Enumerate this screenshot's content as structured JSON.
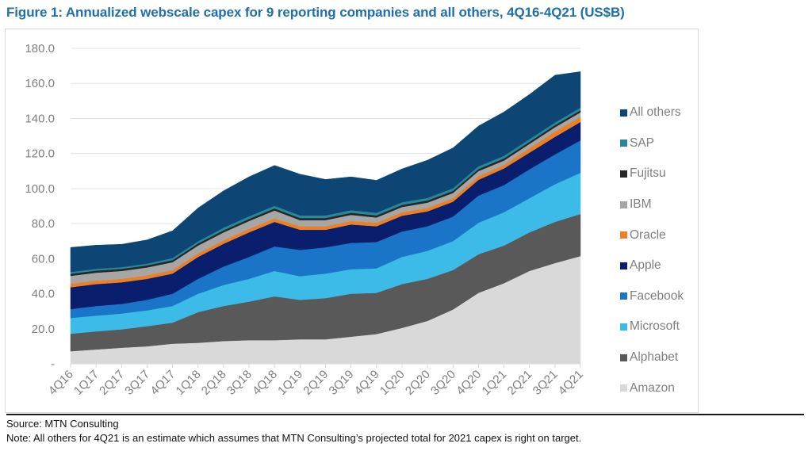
{
  "title": "Figure 1: Annualized webscale capex for 9 reporting companies and all others, 4Q16-4Q21 (US$B)",
  "source": "Source: MTN Consulting",
  "note": "Note: All others for 4Q21 is an estimate which assumes that MTN Consulting’s projected total for 2021 capex is right on target.",
  "chart_data": {
    "type": "area",
    "stacked": true,
    "title": "Figure 1: Annualized webscale capex for 9 reporting companies and all others, 4Q16-4Q21 (US$B)",
    "xlabel": "",
    "ylabel": "",
    "ylim": [
      0,
      180
    ],
    "yticks": [
      "-",
      "20.0",
      "40.0",
      "60.0",
      "80.0",
      "100.0",
      "120.0",
      "140.0",
      "160.0",
      "180.0"
    ],
    "grid": true,
    "legend_position": "right",
    "categories": [
      "4Q16",
      "1Q17",
      "2Q17",
      "3Q17",
      "4Q17",
      "1Q18",
      "2Q18",
      "3Q18",
      "4Q18",
      "1Q19",
      "2Q19",
      "3Q19",
      "4Q19",
      "1Q20",
      "2Q20",
      "3Q20",
      "4Q20",
      "1Q21",
      "2Q21",
      "3Q21",
      "4Q21"
    ],
    "series": [
      {
        "name": "Amazon",
        "color": "#d9d9d9",
        "values": [
          7.2,
          8.2,
          9.2,
          10.0,
          11.5,
          12.0,
          13.0,
          13.5,
          13.5,
          14.0,
          14.0,
          15.5,
          17.0,
          20.5,
          24.5,
          31.0,
          40.5,
          46.0,
          53.0,
          57.5,
          61.5
        ]
      },
      {
        "name": "Alphabet",
        "color": "#595959",
        "values": [
          10.0,
          10.3,
          10.5,
          11.5,
          12.0,
          17.5,
          20.0,
          22.0,
          25.0,
          22.5,
          23.5,
          24.5,
          23.5,
          25.0,
          24.0,
          22.5,
          22.0,
          21.5,
          22.0,
          23.5,
          24.0
        ]
      },
      {
        "name": "Microsoft",
        "color": "#3dbbe8",
        "values": [
          9.0,
          9.0,
          9.0,
          9.0,
          9.5,
          10.5,
          12.0,
          13.0,
          14.5,
          13.5,
          14.0,
          14.0,
          14.0,
          15.5,
          16.0,
          16.5,
          18.0,
          19.0,
          19.5,
          21.5,
          23.5
        ]
      },
      {
        "name": "Facebook",
        "color": "#1a75c8",
        "values": [
          5.0,
          5.5,
          5.5,
          6.0,
          7.0,
          8.5,
          10.5,
          12.5,
          14.0,
          15.0,
          15.0,
          15.0,
          15.0,
          14.5,
          14.0,
          14.0,
          15.5,
          15.5,
          16.5,
          17.0,
          18.5
        ]
      },
      {
        "name": "Apple",
        "color": "#0a1e6e",
        "values": [
          12.5,
          12.5,
          12.3,
          12.0,
          11.5,
          12.5,
          13.0,
          14.0,
          14.0,
          11.5,
          10.0,
          10.5,
          9.0,
          9.0,
          8.5,
          8.5,
          9.0,
          9.5,
          9.5,
          10.0,
          10.5
        ]
      },
      {
        "name": "Oracle",
        "color": "#ee7f22",
        "values": [
          2.0,
          2.0,
          2.0,
          2.0,
          2.0,
          2.0,
          2.0,
          2.0,
          2.0,
          2.0,
          2.0,
          2.0,
          2.0,
          2.0,
          2.0,
          2.0,
          2.0,
          2.0,
          2.5,
          3.0,
          3.0
        ]
      },
      {
        "name": "IBM",
        "color": "#a6a6a6",
        "values": [
          4.5,
          4.5,
          4.5,
          4.5,
          4.5,
          4.5,
          4.5,
          4.5,
          4.5,
          3.5,
          3.5,
          3.5,
          3.0,
          3.0,
          3.0,
          3.0,
          3.0,
          2.5,
          2.5,
          2.5,
          2.5
        ]
      },
      {
        "name": "Fujitsu",
        "color": "#262626",
        "values": [
          1.2,
          1.2,
          1.2,
          1.2,
          1.2,
          1.2,
          1.2,
          1.2,
          1.2,
          1.2,
          1.2,
          1.2,
          1.2,
          1.2,
          1.2,
          1.2,
          1.2,
          1.2,
          1.2,
          1.2,
          1.2
        ]
      },
      {
        "name": "SAP",
        "color": "#26889a",
        "values": [
          1.0,
          1.0,
          1.0,
          1.0,
          1.2,
          1.2,
          1.5,
          1.5,
          1.5,
          1.5,
          1.5,
          1.5,
          1.5,
          1.5,
          1.5,
          1.5,
          1.5,
          1.5,
          1.5,
          1.5,
          1.5
        ]
      },
      {
        "name": "All others",
        "color": "#0d4674",
        "values": [
          14.0,
          13.5,
          13.0,
          13.5,
          15.5,
          19.0,
          21.0,
          22.5,
          23.0,
          23.5,
          20.5,
          19.0,
          18.5,
          19.0,
          21.5,
          23.0,
          23.0,
          25.0,
          25.5,
          27.0,
          20.5
        ]
      }
    ]
  }
}
